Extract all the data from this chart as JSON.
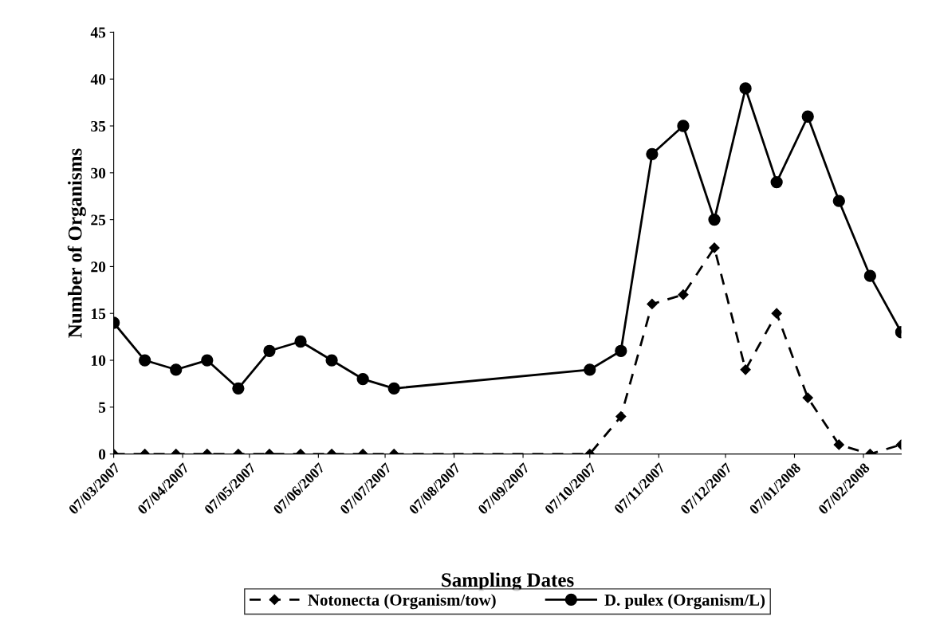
{
  "chart_data": {
    "type": "line",
    "xlabel": "Sampling Dates",
    "ylabel": "Number of Organisms",
    "x": [
      "2007-03-07",
      "2007-03-21",
      "2007-04-04",
      "2007-04-18",
      "2007-05-02",
      "2007-05-16",
      "2007-05-30",
      "2007-06-13",
      "2007-06-27",
      "2007-07-11",
      "2007-10-07",
      "2007-10-21",
      "2007-11-04",
      "2007-11-18",
      "2007-12-02",
      "2007-12-16",
      "2007-12-30",
      "2008-01-13",
      "2008-01-27",
      "2008-02-10",
      "2008-02-24"
    ],
    "series": [
      {
        "name": "Notonecta (Organism/tow)",
        "color": "#000000",
        "marker": "diamond",
        "line_style": "dashed",
        "values": [
          0,
          0,
          0,
          0,
          0,
          0,
          0,
          0,
          0,
          0,
          0,
          4,
          16,
          17,
          22,
          9,
          15,
          6,
          1,
          0,
          1
        ]
      },
      {
        "name": "D. pulex (Organism/L)",
        "color": "#000000",
        "marker": "circle",
        "line_style": "solid",
        "values": [
          14,
          10,
          9,
          10,
          7,
          11,
          12,
          10,
          8,
          7,
          9,
          11,
          32,
          35,
          25,
          39,
          29,
          36,
          27,
          19,
          13
        ]
      }
    ],
    "xlim": [
      "2007-03-07",
      "2008-02-24"
    ],
    "xticks": [
      {
        "value": "2007-03-07",
        "label": "07/03/2007"
      },
      {
        "value": "2007-04-07",
        "label": "07/04/2007"
      },
      {
        "value": "2007-05-07",
        "label": "07/05/2007"
      },
      {
        "value": "2007-06-07",
        "label": "07/06/2007"
      },
      {
        "value": "2007-07-07",
        "label": "07/07/2007"
      },
      {
        "value": "2007-08-07",
        "label": "07/08/2007"
      },
      {
        "value": "2007-09-07",
        "label": "07/09/2007"
      },
      {
        "value": "2007-10-07",
        "label": "07/10/2007"
      },
      {
        "value": "2007-11-07",
        "label": "07/11/2007"
      },
      {
        "value": "2007-12-07",
        "label": "07/12/2007"
      },
      {
        "value": "2008-01-07",
        "label": "07/01/2008"
      },
      {
        "value": "2008-02-07",
        "label": "07/02/2008"
      }
    ],
    "ylim": [
      0,
      45
    ],
    "yticks": [
      0,
      5,
      10,
      15,
      20,
      25,
      30,
      35,
      40,
      45
    ],
    "grid": false,
    "legend": "bottom"
  }
}
